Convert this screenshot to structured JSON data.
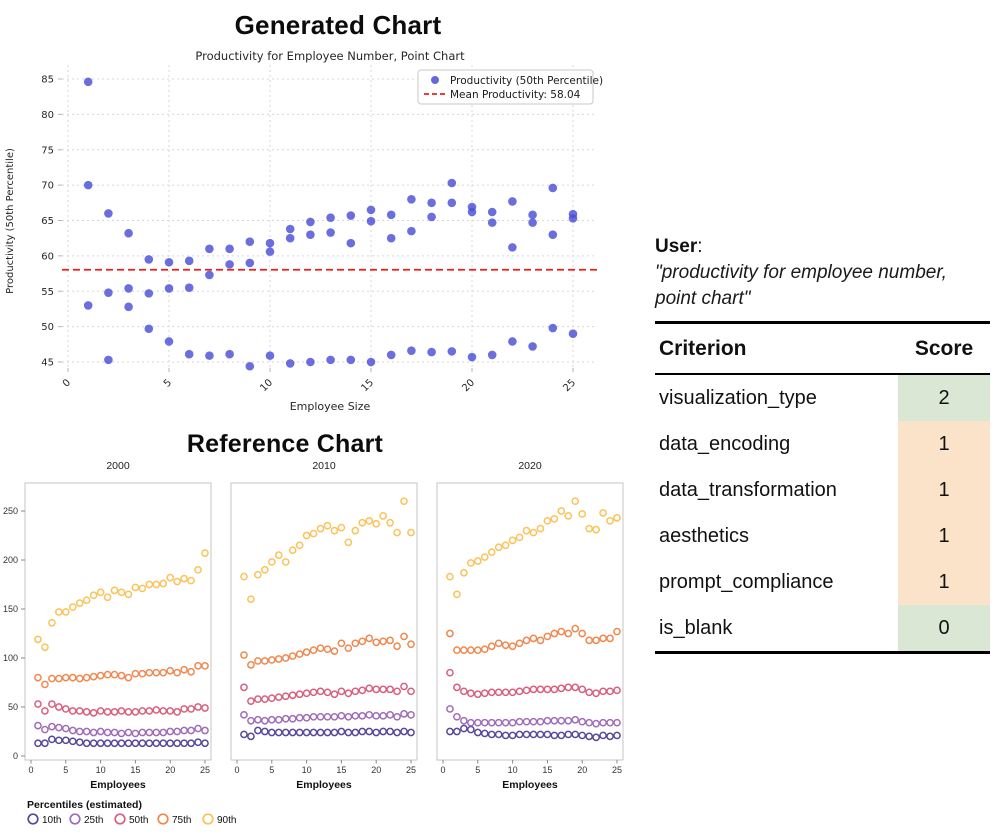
{
  "ui": {
    "generated_chart_title": "Generated Chart",
    "reference_chart_title": "Reference Chart"
  },
  "evaluation": {
    "user_label": "User",
    "user_colon": ":",
    "quote": "\"productivity for employee number, point chart\"",
    "table_headers": {
      "criterion": "Criterion",
      "score": "Score"
    },
    "score_colors": {
      "good": "#d9e7d4",
      "warn": "#fbe3c9"
    },
    "rows": [
      {
        "criterion": "visualization_type",
        "score": "2",
        "tone": "good"
      },
      {
        "criterion": "data_encoding",
        "score": "1",
        "tone": "warn"
      },
      {
        "criterion": "data_transformation",
        "score": "1",
        "tone": "warn"
      },
      {
        "criterion": "aesthetics",
        "score": "1",
        "tone": "warn"
      },
      {
        "criterion": "prompt_compliance",
        "score": "1",
        "tone": "warn"
      },
      {
        "criterion": "is_blank",
        "score": "0",
        "tone": "good"
      }
    ]
  },
  "chart_data": [
    {
      "id": "generated",
      "type": "scatter",
      "title": "Productivity for Employee Number, Point Chart",
      "xlabel": "Employee Size",
      "ylabel": "Productivity (50th Percentile)",
      "xticks": [
        0,
        5,
        10,
        15,
        20,
        25
      ],
      "yticks": [
        45,
        50,
        55,
        60,
        65,
        70,
        75,
        80,
        85
      ],
      "xlim": [
        -0.3,
        26.2
      ],
      "ylim": [
        44.2,
        87.0
      ],
      "grid": true,
      "point_color": "#4a4ed6",
      "legend_position": "top-right",
      "series": [
        {
          "name": "Productivity (50th Percentile)",
          "marker": "filled-circle",
          "points": [
            [
              1,
              84.6
            ],
            [
              1,
              70.0
            ],
            [
              1,
              53.0
            ],
            [
              2,
              66.0
            ],
            [
              2,
              54.8
            ],
            [
              2,
              45.3
            ],
            [
              3,
              63.2
            ],
            [
              3,
              55.4
            ],
            [
              3,
              52.8
            ],
            [
              4,
              59.5
            ],
            [
              4,
              54.7
            ],
            [
              4,
              49.7
            ],
            [
              5,
              59.1
            ],
            [
              5,
              55.4
            ],
            [
              5,
              47.9
            ],
            [
              6,
              59.3
            ],
            [
              6,
              55.5
            ],
            [
              6,
              46.1
            ],
            [
              7,
              61.0
            ],
            [
              7,
              57.3
            ],
            [
              7,
              45.9
            ],
            [
              8,
              61.0
            ],
            [
              8,
              58.8
            ],
            [
              8,
              46.1
            ],
            [
              9,
              62.0
            ],
            [
              9,
              59.0
            ],
            [
              9,
              44.4
            ],
            [
              10,
              61.8
            ],
            [
              10,
              60.6
            ],
            [
              10,
              45.9
            ],
            [
              11,
              63.8
            ],
            [
              11,
              62.5
            ],
            [
              11,
              44.8
            ],
            [
              12,
              64.8
            ],
            [
              12,
              63.0
            ],
            [
              12,
              45.0
            ],
            [
              13,
              65.4
            ],
            [
              13,
              63.3
            ],
            [
              13,
              45.3
            ],
            [
              14,
              65.7
            ],
            [
              14,
              61.8
            ],
            [
              14,
              45.3
            ],
            [
              15,
              66.5
            ],
            [
              15,
              64.9
            ],
            [
              15,
              45.0
            ],
            [
              16,
              65.8
            ],
            [
              16,
              62.5
            ],
            [
              16,
              46.0
            ],
            [
              17,
              68.0
            ],
            [
              17,
              63.5
            ],
            [
              17,
              46.6
            ],
            [
              18,
              67.5
            ],
            [
              18,
              65.5
            ],
            [
              18,
              46.4
            ],
            [
              19,
              70.3
            ],
            [
              19,
              67.5
            ],
            [
              19,
              46.5
            ],
            [
              20,
              66.9
            ],
            [
              20,
              66.2
            ],
            [
              20,
              45.7
            ],
            [
              21,
              66.2
            ],
            [
              21,
              64.7
            ],
            [
              21,
              46.0
            ],
            [
              22,
              67.7
            ],
            [
              22,
              61.2
            ],
            [
              22,
              47.9
            ],
            [
              23,
              65.8
            ],
            [
              23,
              64.7
            ],
            [
              23,
              47.2
            ],
            [
              24,
              69.6
            ],
            [
              24,
              63.0
            ],
            [
              24,
              49.8
            ],
            [
              25,
              65.9
            ],
            [
              25,
              65.3
            ],
            [
              25,
              49.0
            ]
          ]
        }
      ],
      "mean_line": {
        "label": "Mean Productivity: 58.04",
        "value": 58.04,
        "color": "#ee1e17",
        "style": "dashed"
      }
    },
    {
      "id": "reference",
      "type": "scatter-small-multiples",
      "xlabel": "Employees",
      "xticks": [
        0,
        5,
        10,
        15,
        20,
        25
      ],
      "yticks": [
        0,
        50,
        100,
        150,
        200,
        250
      ],
      "xlim": [
        0,
        25
      ],
      "ylim": [
        0,
        281
      ],
      "legend_title": "Percentiles (estimated)",
      "series_order": [
        "10th",
        "25th",
        "50th",
        "75th",
        "90th"
      ],
      "series_colors": {
        "10th": "#57489b",
        "25th": "#a06cb8",
        "50th": "#d95f7d",
        "75th": "#f0884f",
        "90th": "#fbc25a"
      },
      "panels": [
        {
          "title": "2000",
          "series": {
            "10th": [
              13,
              13,
              17,
              16,
              16,
              15,
              14,
              13,
              13,
              13,
              13,
              13,
              13,
              13,
              13,
              13,
              13,
              13,
              13,
              13,
              13,
              13,
              13,
              14,
              13
            ],
            "25th": [
              31,
              27,
              30,
              29,
              28,
              26,
              25,
              25,
              24,
              25,
              24,
              24,
              23,
              24,
              23,
              24,
              24,
              24,
              24,
              25,
              25,
              26,
              26,
              28,
              26
            ],
            "50th": [
              53,
              46,
              53,
              50,
              48,
              46,
              46,
              45,
              44,
              46,
              45,
              45,
              46,
              45,
              45,
              46,
              46,
              47,
              46,
              46,
              45,
              48,
              48,
              50,
              49
            ],
            "75th": [
              80,
              73,
              79,
              79,
              80,
              80,
              79,
              80,
              81,
              82,
              83,
              83,
              82,
              80,
              84,
              84,
              85,
              85,
              85,
              87,
              85,
              88,
              86,
              92,
              92
            ],
            "90th": [
              119,
              111,
              136,
              147,
              147,
              152,
              156,
              159,
              164,
              167,
              162,
              169,
              167,
              165,
              172,
              171,
              175,
              175,
              176,
              182,
              178,
              181,
              179,
              190,
              207
            ]
          }
        },
        {
          "title": "2010",
          "series": {
            "10th": [
              22,
              20,
              26,
              25,
              24,
              24,
              24,
              24,
              24,
              24,
              24,
              24,
              24,
              24,
              25,
              24,
              24,
              25,
              25,
              24,
              25,
              25,
              24,
              25,
              24
            ],
            "25th": [
              42,
              36,
              37,
              36,
              37,
              37,
              38,
              38,
              39,
              39,
              40,
              40,
              40,
              40,
              41,
              40,
              41,
              41,
              42,
              41,
              41,
              42,
              40,
              43,
              42
            ],
            "50th": [
              70,
              56,
              58,
              58,
              59,
              60,
              61,
              62,
              63,
              64,
              65,
              66,
              65,
              63,
              66,
              64,
              66,
              67,
              69,
              68,
              68,
              68,
              66,
              71,
              66
            ],
            "75th": [
              103,
              93,
              97,
              97,
              98,
              99,
              100,
              102,
              104,
              106,
              108,
              110,
              109,
              107,
              115,
              110,
              115,
              117,
              120,
              116,
              117,
              118,
              112,
              122,
              114
            ],
            "90th": [
              183,
              160,
              185,
              190,
              198,
              205,
              198,
              210,
              215,
              225,
              227,
              232,
              235,
              230,
              233,
              218,
              230,
              238,
              240,
              237,
              245,
              238,
              228,
              260,
              228
            ]
          }
        },
        {
          "title": "2020",
          "series": {
            "10th": [
              25,
              25,
              28,
              27,
              24,
              23,
              22,
              22,
              21,
              21,
              22,
              22,
              22,
              22,
              22,
              21,
              21,
              22,
              22,
              21,
              20,
              19,
              21,
              20,
              21
            ],
            "25th": [
              48,
              40,
              36,
              34,
              34,
              34,
              34,
              34,
              34,
              34,
              35,
              35,
              35,
              35,
              36,
              36,
              36,
              36,
              37,
              35,
              34,
              33,
              34,
              34,
              34
            ],
            "50th": [
              85,
              70,
              66,
              64,
              63,
              64,
              65,
              65,
              65,
              65,
              66,
              67,
              68,
              68,
              68,
              68,
              69,
              70,
              70,
              68,
              65,
              64,
              66,
              66,
              67
            ],
            "75th": [
              125,
              108,
              108,
              108,
              108,
              109,
              112,
              115,
              113,
              112,
              115,
              118,
              120,
              118,
              122,
              125,
              127,
              125,
              130,
              125,
              118,
              118,
              120,
              120,
              127
            ],
            "90th": [
              183,
              165,
              187,
              197,
              199,
              203,
              208,
              213,
              215,
              220,
              223,
              230,
              228,
              232,
              240,
              242,
              250,
              245,
              260,
              247,
              232,
              231,
              248,
              240,
              243
            ]
          }
        }
      ]
    }
  ]
}
